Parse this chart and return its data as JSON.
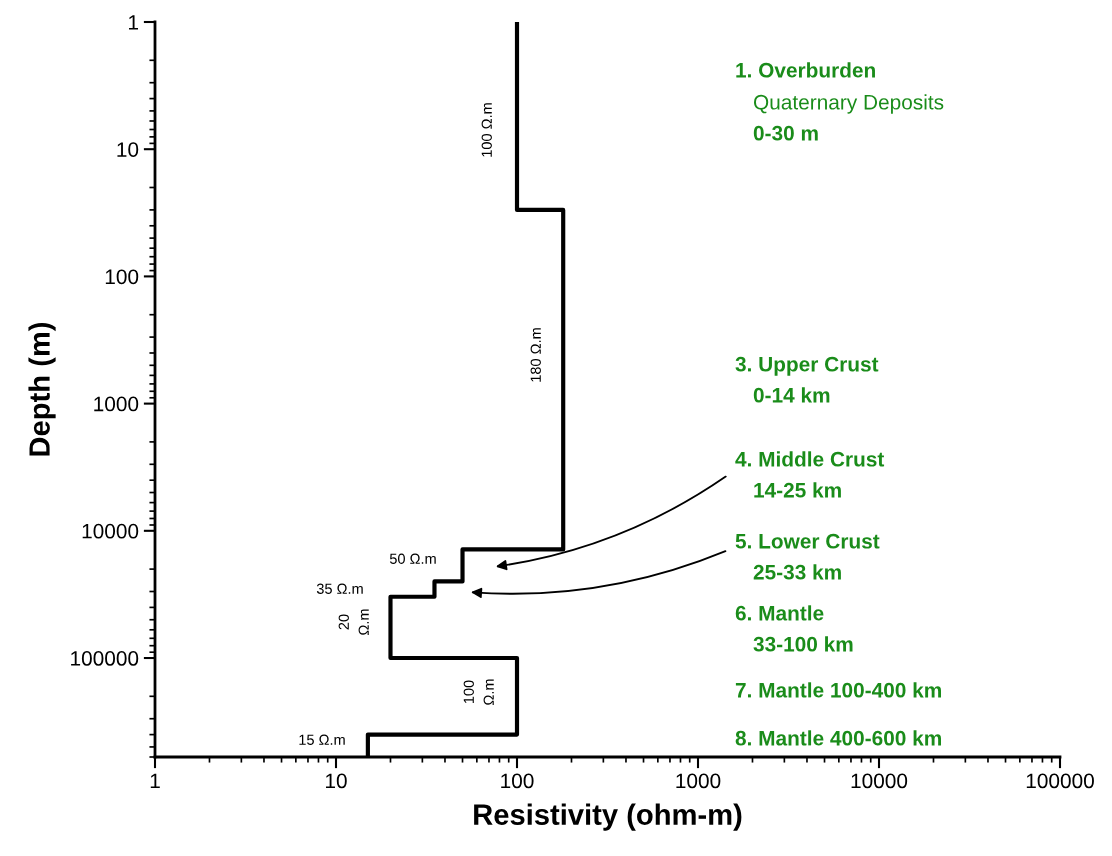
{
  "chart_data": {
    "type": "line",
    "xlabel": "Resistivity (ohm-m)",
    "ylabel": "Depth (m)",
    "log": "xy",
    "xlim": [
      1,
      100000
    ],
    "xticks": [
      1,
      10,
      100,
      1000,
      10000,
      100000
    ],
    "ylim": [
      600000,
      1
    ],
    "yticks": [
      1,
      10,
      100,
      1000,
      10000,
      100000
    ],
    "grid": false,
    "legend": false,
    "marker": "none",
    "line_style": "solid",
    "series": [
      {
        "color": "#000000",
        "x": [
          100,
          100,
          180,
          180,
          50,
          50,
          35,
          35,
          20,
          20,
          100,
          100,
          15,
          15
        ],
        "values": [
          1,
          30,
          30,
          14000,
          14000,
          25000,
          25000,
          33000,
          33000,
          100000,
          100000,
          400000,
          400000,
          600000
        ]
      }
    ],
    "annotations": [
      "100 Ω.m",
      "180 Ω.m",
      "50 Ω.m",
      "35 Ω.m",
      "20 Ω.m",
      "100 Ω.m",
      "15 Ω.m",
      "1. Overburden",
      "Quaternary Deposits",
      "0-30 m",
      "3. Upper Crust",
      "0-14 km",
      "4. Middle Crust",
      "14-25 km",
      "5. Lower Crust",
      "25-33 km",
      "6. Mantle",
      "33-100 km",
      "7. Mantle 100-400 km",
      "8. Mantle 400-600 km"
    ]
  }
}
